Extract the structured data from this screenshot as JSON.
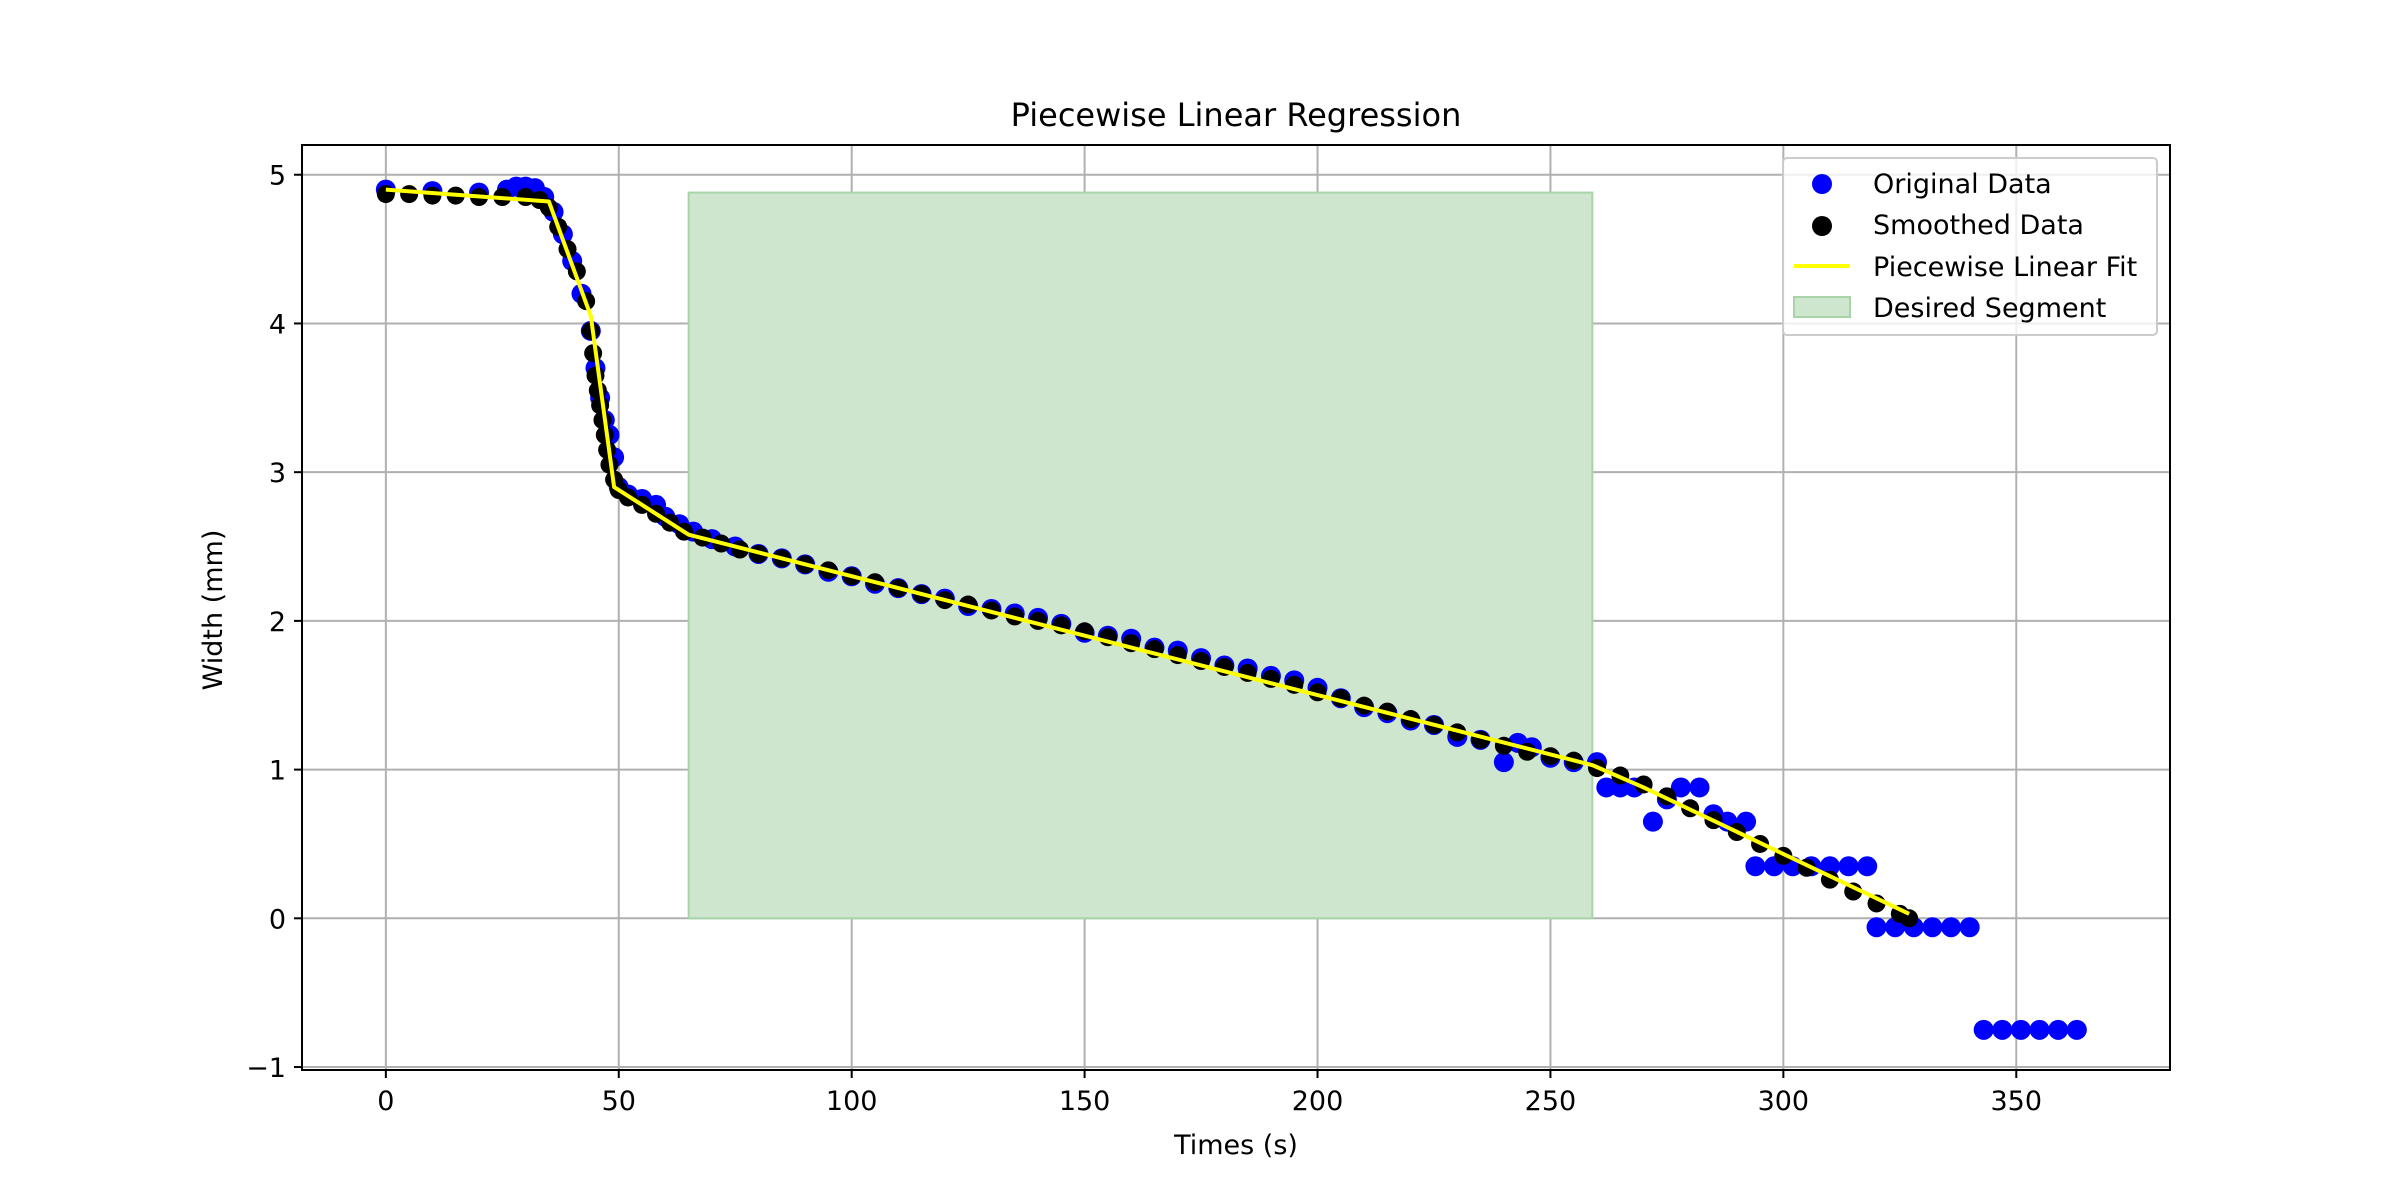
{
  "chart_data": {
    "type": "scatter",
    "title": "Piecewise Linear Regression",
    "xlabel": "Times (s)",
    "ylabel": "Width (mm)",
    "xlim": [
      -18,
      383
    ],
    "ylim": [
      -1.02,
      5.2
    ],
    "x_ticks": [
      0,
      50,
      100,
      150,
      200,
      250,
      300,
      350
    ],
    "y_ticks": [
      -1,
      0,
      1,
      2,
      3,
      4,
      5
    ],
    "x_tick_labels": [
      "0",
      "50",
      "100",
      "150",
      "200",
      "250",
      "300",
      "350"
    ],
    "y_tick_labels": [
      "−1",
      "0",
      "1",
      "2",
      "3",
      "4",
      "5"
    ],
    "grid": true,
    "legend_position": "top-right",
    "colors": {
      "original": "#0000ff",
      "smoothed": "#000000",
      "fit": "#ffff00",
      "segment": "#cde6cd",
      "grid": "#b0b0b0"
    },
    "series": [
      {
        "name": "Original Data",
        "kind": "scatter",
        "points": [
          [
            0,
            4.9
          ],
          [
            10,
            4.89
          ],
          [
            20,
            4.88
          ],
          [
            26,
            4.9
          ],
          [
            28,
            4.92
          ],
          [
            30,
            4.92
          ],
          [
            32,
            4.91
          ],
          [
            34,
            4.85
          ],
          [
            36,
            4.75
          ],
          [
            38,
            4.6
          ],
          [
            40,
            4.42
          ],
          [
            42,
            4.2
          ],
          [
            44,
            3.95
          ],
          [
            45,
            3.7
          ],
          [
            46,
            3.5
          ],
          [
            47,
            3.35
          ],
          [
            48,
            3.25
          ],
          [
            49,
            3.1
          ],
          [
            50,
            2.9
          ],
          [
            52,
            2.85
          ],
          [
            55,
            2.82
          ],
          [
            58,
            2.78
          ],
          [
            60,
            2.7
          ],
          [
            63,
            2.65
          ],
          [
            66,
            2.6
          ],
          [
            70,
            2.55
          ],
          [
            75,
            2.5
          ],
          [
            80,
            2.45
          ],
          [
            85,
            2.42
          ],
          [
            90,
            2.38
          ],
          [
            95,
            2.33
          ],
          [
            100,
            2.3
          ],
          [
            105,
            2.25
          ],
          [
            110,
            2.22
          ],
          [
            115,
            2.18
          ],
          [
            120,
            2.15
          ],
          [
            125,
            2.1
          ],
          [
            130,
            2.08
          ],
          [
            135,
            2.05
          ],
          [
            140,
            2.02
          ],
          [
            145,
            1.98
          ],
          [
            150,
            1.92
          ],
          [
            155,
            1.9
          ],
          [
            160,
            1.88
          ],
          [
            165,
            1.82
          ],
          [
            170,
            1.8
          ],
          [
            175,
            1.75
          ],
          [
            180,
            1.7
          ],
          [
            185,
            1.68
          ],
          [
            190,
            1.63
          ],
          [
            195,
            1.6
          ],
          [
            200,
            1.55
          ],
          [
            205,
            1.48
          ],
          [
            210,
            1.42
          ],
          [
            215,
            1.38
          ],
          [
            220,
            1.33
          ],
          [
            225,
            1.3
          ],
          [
            230,
            1.22
          ],
          [
            235,
            1.2
          ],
          [
            240,
            1.05
          ],
          [
            243,
            1.18
          ],
          [
            246,
            1.15
          ],
          [
            250,
            1.08
          ],
          [
            255,
            1.05
          ],
          [
            260,
            1.05
          ],
          [
            262,
            0.88
          ],
          [
            265,
            0.88
          ],
          [
            268,
            0.88
          ],
          [
            272,
            0.65
          ],
          [
            275,
            0.8
          ],
          [
            278,
            0.88
          ],
          [
            282,
            0.88
          ],
          [
            285,
            0.7
          ],
          [
            288,
            0.65
          ],
          [
            292,
            0.65
          ],
          [
            294,
            0.35
          ],
          [
            298,
            0.35
          ],
          [
            302,
            0.35
          ],
          [
            306,
            0.35
          ],
          [
            310,
            0.35
          ],
          [
            314,
            0.35
          ],
          [
            318,
            0.35
          ],
          [
            320,
            -0.06
          ],
          [
            324,
            -0.06
          ],
          [
            328,
            -0.06
          ],
          [
            332,
            -0.06
          ],
          [
            336,
            -0.06
          ],
          [
            340,
            -0.06
          ],
          [
            343,
            -0.75
          ],
          [
            347,
            -0.75
          ],
          [
            351,
            -0.75
          ],
          [
            355,
            -0.75
          ],
          [
            359,
            -0.75
          ],
          [
            363,
            -0.75
          ]
        ]
      },
      {
        "name": "Smoothed Data",
        "kind": "scatter",
        "points": [
          [
            0,
            4.87
          ],
          [
            5,
            4.87
          ],
          [
            10,
            4.86
          ],
          [
            15,
            4.86
          ],
          [
            20,
            4.85
          ],
          [
            25,
            4.85
          ],
          [
            30,
            4.85
          ],
          [
            33,
            4.83
          ],
          [
            35,
            4.78
          ],
          [
            37,
            4.65
          ],
          [
            39,
            4.5
          ],
          [
            41,
            4.35
          ],
          [
            43,
            4.15
          ],
          [
            44,
            3.95
          ],
          [
            44.5,
            3.8
          ],
          [
            45,
            3.65
          ],
          [
            45.5,
            3.55
          ],
          [
            46,
            3.45
          ],
          [
            46.5,
            3.35
          ],
          [
            47,
            3.25
          ],
          [
            47.5,
            3.15
          ],
          [
            48,
            3.05
          ],
          [
            49,
            2.95
          ],
          [
            50,
            2.88
          ],
          [
            52,
            2.83
          ],
          [
            55,
            2.78
          ],
          [
            58,
            2.72
          ],
          [
            61,
            2.66
          ],
          [
            64,
            2.6
          ],
          [
            68,
            2.56
          ],
          [
            72,
            2.52
          ],
          [
            76,
            2.48
          ],
          [
            80,
            2.45
          ],
          [
            85,
            2.42
          ],
          [
            90,
            2.38
          ],
          [
            95,
            2.34
          ],
          [
            100,
            2.3
          ],
          [
            105,
            2.26
          ],
          [
            110,
            2.22
          ],
          [
            115,
            2.18
          ],
          [
            120,
            2.14
          ],
          [
            125,
            2.11
          ],
          [
            130,
            2.07
          ],
          [
            135,
            2.03
          ],
          [
            140,
            2.0
          ],
          [
            145,
            1.97
          ],
          [
            150,
            1.93
          ],
          [
            155,
            1.89
          ],
          [
            160,
            1.85
          ],
          [
            165,
            1.81
          ],
          [
            170,
            1.77
          ],
          [
            175,
            1.73
          ],
          [
            180,
            1.69
          ],
          [
            185,
            1.65
          ],
          [
            190,
            1.61
          ],
          [
            195,
            1.57
          ],
          [
            200,
            1.52
          ],
          [
            205,
            1.48
          ],
          [
            210,
            1.43
          ],
          [
            215,
            1.39
          ],
          [
            220,
            1.34
          ],
          [
            225,
            1.3
          ],
          [
            230,
            1.25
          ],
          [
            235,
            1.2
          ],
          [
            240,
            1.16
          ],
          [
            245,
            1.12
          ],
          [
            250,
            1.09
          ],
          [
            255,
            1.06
          ],
          [
            260,
            1.01
          ],
          [
            265,
            0.96
          ],
          [
            270,
            0.9
          ],
          [
            275,
            0.82
          ],
          [
            280,
            0.74
          ],
          [
            285,
            0.66
          ],
          [
            290,
            0.58
          ],
          [
            295,
            0.5
          ],
          [
            300,
            0.42
          ],
          [
            305,
            0.34
          ],
          [
            310,
            0.26
          ],
          [
            315,
            0.18
          ],
          [
            320,
            0.1
          ],
          [
            325,
            0.03
          ],
          [
            327,
            0.0
          ]
        ]
      },
      {
        "name": "Piecewise Linear Fit",
        "kind": "line",
        "points": [
          [
            0,
            4.9
          ],
          [
            35,
            4.82
          ],
          [
            44,
            4.05
          ],
          [
            49,
            2.9
          ],
          [
            65,
            2.58
          ],
          [
            259,
            1.03
          ],
          [
            270,
            0.88
          ],
          [
            327,
            0.03
          ]
        ]
      }
    ],
    "shaded_region": {
      "name": "Desired Segment",
      "x": [
        65,
        259
      ],
      "y": [
        0,
        4.88
      ]
    }
  }
}
